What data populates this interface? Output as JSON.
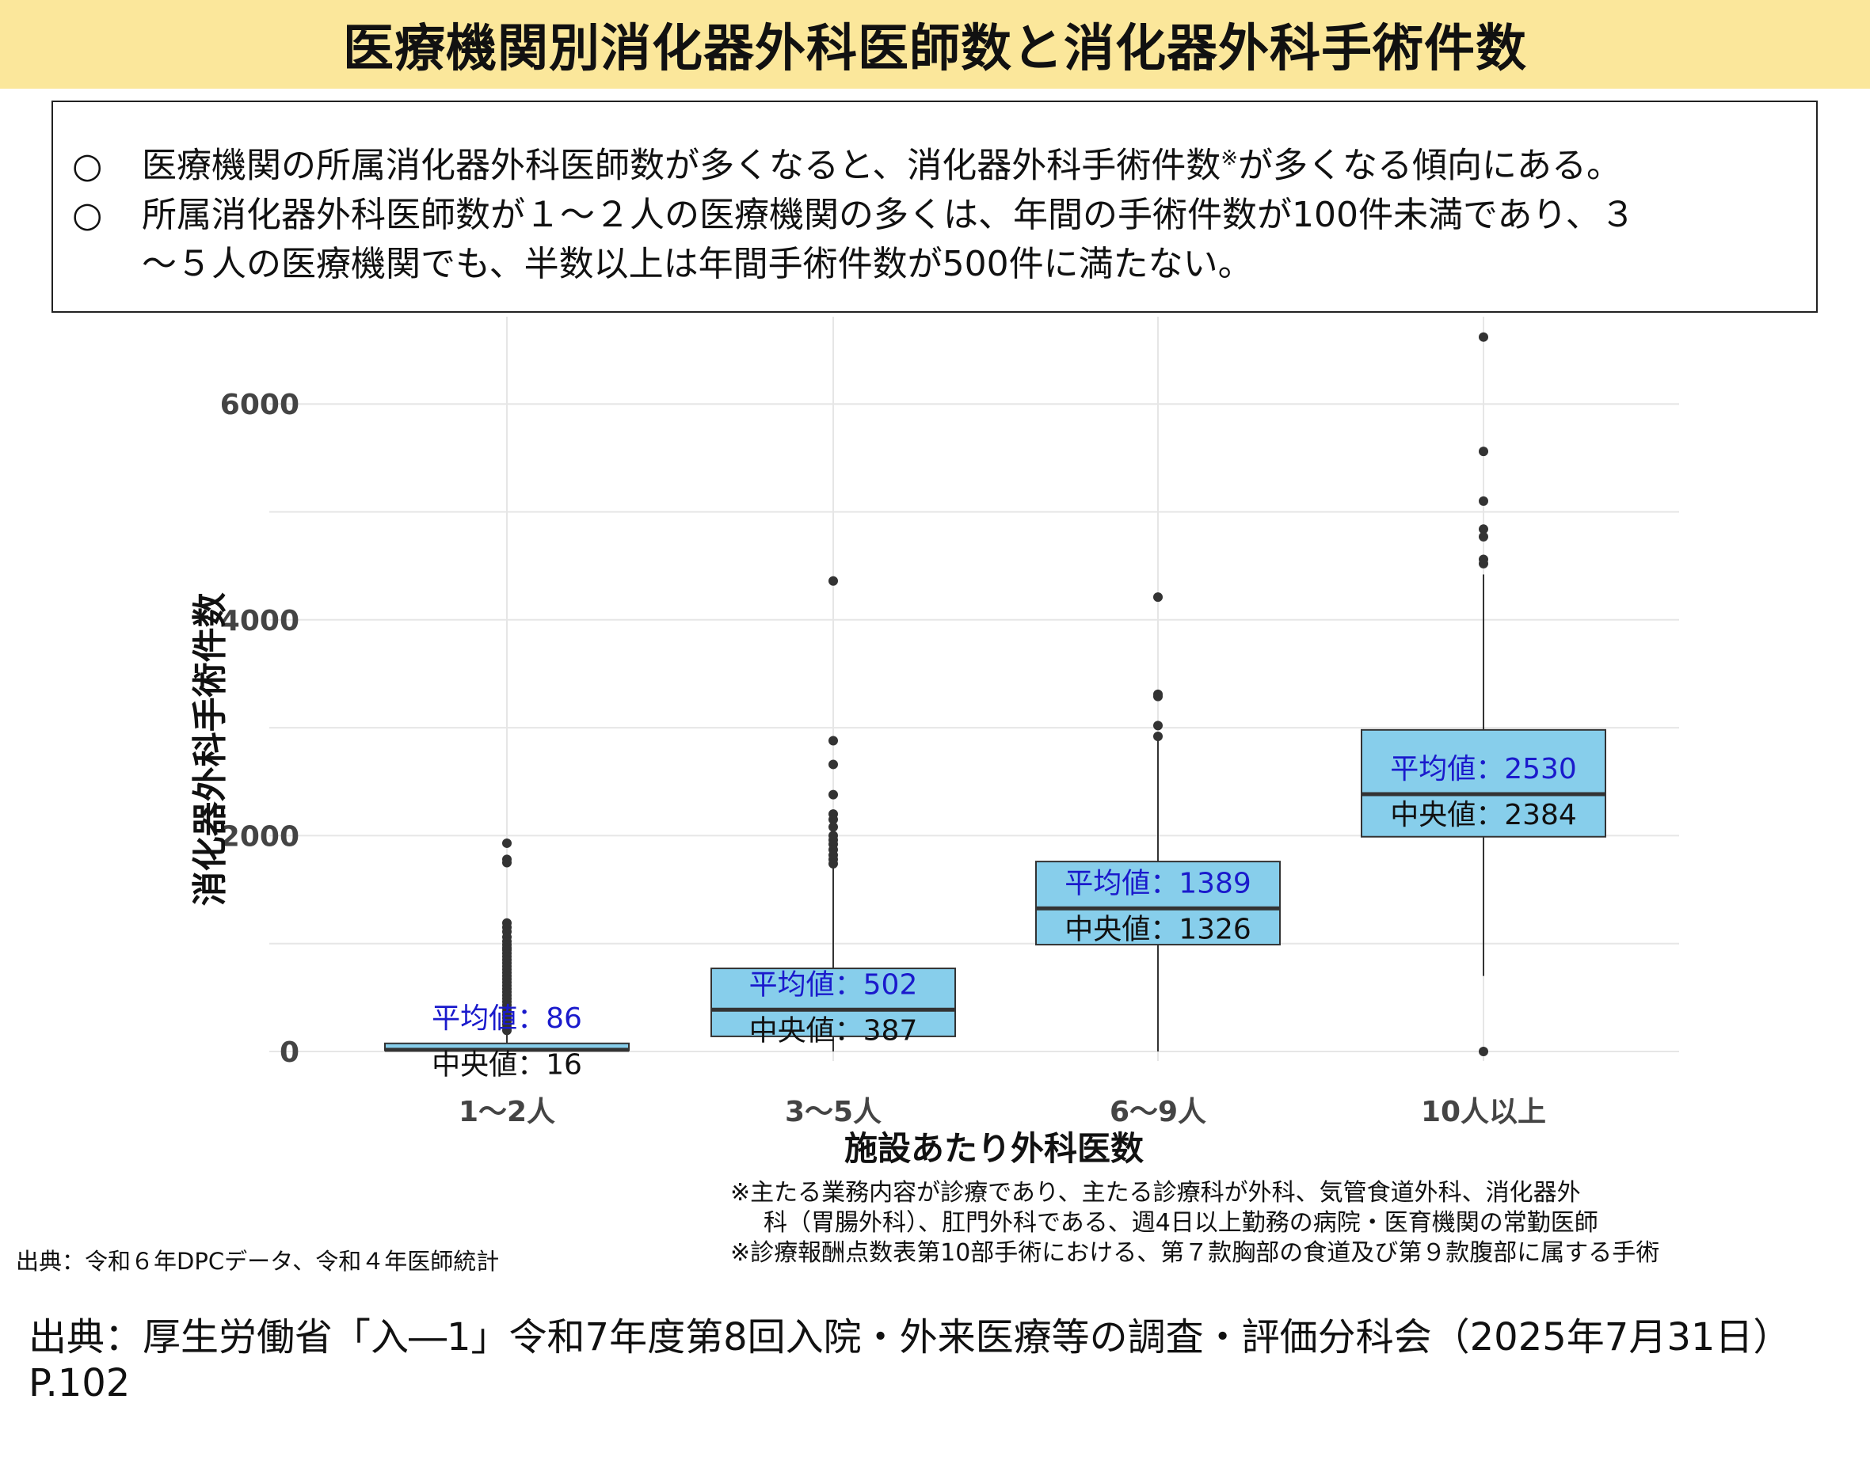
{
  "title": "医療機関別消化器外科医師数と消化器外科手術件数",
  "summary": {
    "bullet": "○",
    "line1": "医療機関の所属消化器外科医師数が多くなると、消化器外科手術件数",
    "line1_mark": "※",
    "line1_end": "が多くなる傾向にある。",
    "line2": "所属消化器外科医師数が１～２人の医療機関の多くは、年間の手術件数が100件未満であり、３",
    "line3": "～５人の医療機関でも、半数以上は年間手術件数が500件に満たない。"
  },
  "chart_data": {
    "type": "box",
    "xlabel": "施設あたり外科医数",
    "ylabel": "消化器外科手術件数",
    "ylim": [
      0,
      6700
    ],
    "yticks": [
      0,
      2000,
      4000,
      6000
    ],
    "categories": [
      "1～2人",
      "3～5人",
      "6～9人",
      "10人以上"
    ],
    "mean_label": "平均値：",
    "median_label": "中央値：",
    "box_color": "#87ceeb",
    "mean_text_color": "#1a1acc",
    "boxes": [
      {
        "category": "1～2人",
        "q1": 10,
        "median": 16,
        "q3": 75,
        "whisker_low": 0,
        "whisker_high": 170,
        "mean": 86,
        "outliers": [
          1930,
          1780,
          1750,
          1190,
          1150,
          1110,
          1060,
          1020,
          990,
          960,
          940,
          910,
          880,
          850,
          820,
          790,
          760,
          730,
          700,
          670,
          640,
          610,
          580,
          550,
          520,
          490,
          460,
          430,
          400,
          370,
          340,
          310,
          280,
          250,
          220,
          195
        ]
      },
      {
        "category": "3～5人",
        "q1": 140,
        "median": 387,
        "q3": 770,
        "whisker_low": 0,
        "whisker_high": 1700,
        "mean": 502,
        "outliers": [
          4360,
          2880,
          2660,
          2380,
          2200,
          2150,
          2080,
          2000,
          1960,
          1920,
          1870,
          1820,
          1780,
          1740
        ]
      },
      {
        "category": "6～9人",
        "q1": 990,
        "median": 1326,
        "q3": 1760,
        "whisker_low": 0,
        "whisker_high": 2900,
        "mean": 1389,
        "outliers": [
          4210,
          3310,
          3290,
          3020,
          2920
        ]
      },
      {
        "category": "10人以上",
        "q1": 1990,
        "median": 2384,
        "q3": 2980,
        "whisker_low": 700,
        "whisker_high": 4420,
        "mean": 2530,
        "outliers": [
          6620,
          5560,
          5100,
          4840,
          4770,
          4560,
          4520,
          0
        ]
      }
    ]
  },
  "notes": {
    "line1": "※主たる業務内容が診療であり、主たる診療科が外科、気管食道外科、消化器外",
    "line2": "科（胃腸外科）、肛門外科である、週4日以上勤務の病院・医育機関の常勤医師",
    "line3": "※診療報酬点数表第10部手術における、第７款胸部の食道及び第９款腹部に属する手術"
  },
  "source_small": "出典：令和６年DPCデータ、令和４年医師統計",
  "source_big": "出典：厚生労働省「入―1」令和7年度第8回入院・外来医療等の調査・評価分科会（2025年7月31日）P.102"
}
